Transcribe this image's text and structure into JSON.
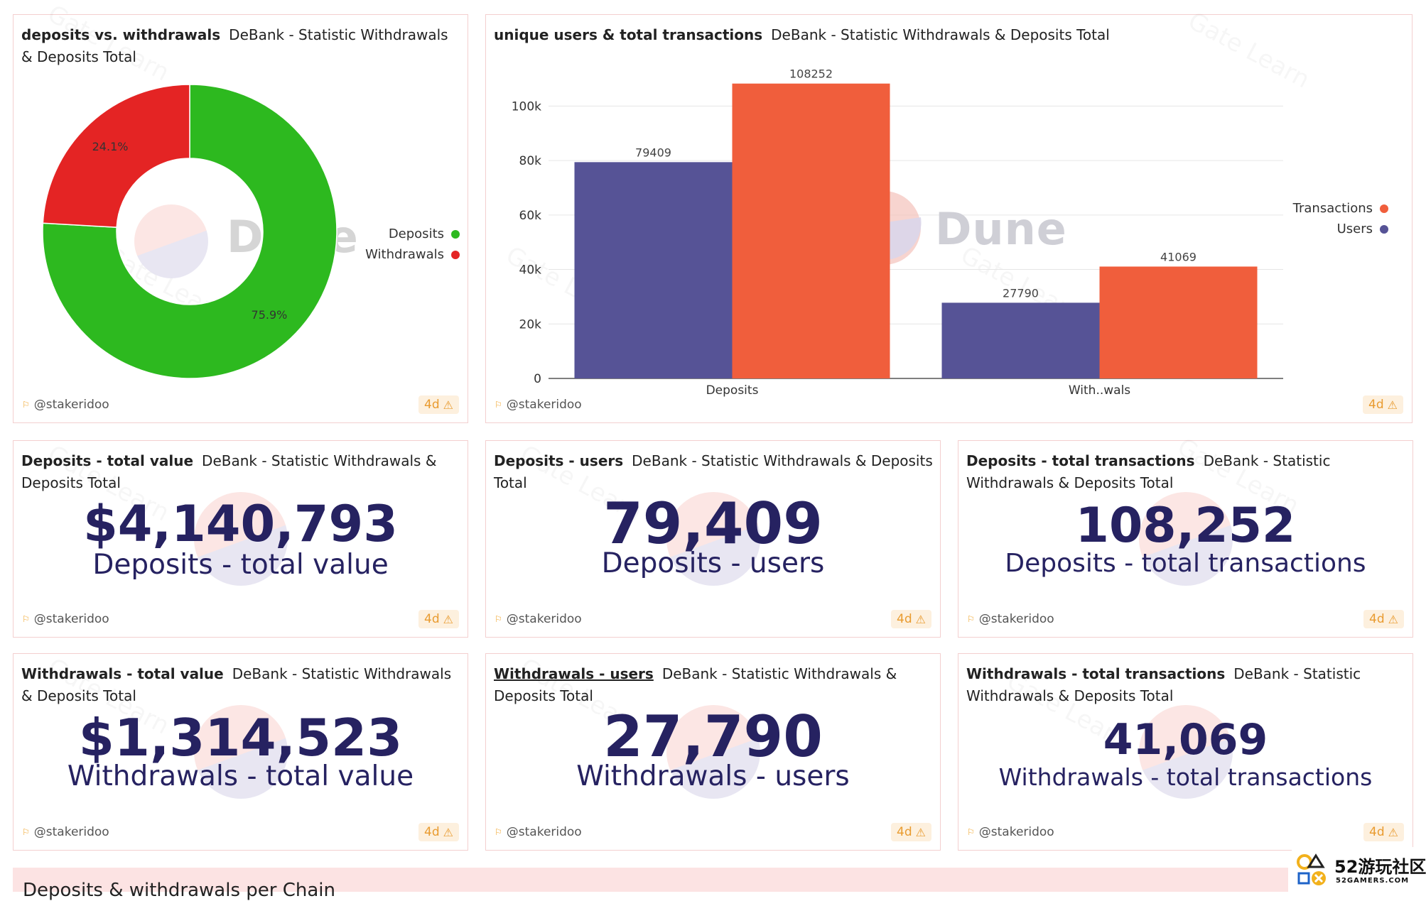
{
  "dashboard": {
    "footer": {
      "author": "@stakeridoo",
      "age": "4d"
    },
    "dune_watermark": "Dune",
    "gate_watermark": "Gate Learn",
    "pie_card": {
      "title": "deposits vs. withdrawals",
      "subtitle": "DeBank - Statistic Withdrawals & Deposits Total"
    },
    "bar_card": {
      "title": "unique users & total transactions",
      "subtitle": "DeBank - Statistic Withdrawals & Deposits Total"
    },
    "counters": [
      {
        "title": "Deposits - total value",
        "subtitle": "DeBank - Statistic Withdrawals & Deposits Total",
        "value": "$4,140,793",
        "label": "Deposits - total value"
      },
      {
        "title": "Deposits - users",
        "subtitle": "DeBank - Statistic Withdrawals & Deposits Total",
        "value": "79,409",
        "label": "Deposits - users"
      },
      {
        "title": "Deposits - total transactions",
        "subtitle": "DeBank - Statistic Withdrawals & Deposits Total",
        "value": "108,252",
        "label": "Deposits - total transactions"
      },
      {
        "title": "Withdrawals - total value",
        "subtitle": "DeBank - Statistic Withdrawals & Deposits Total",
        "value": "$1,314,523",
        "label": "Withdrawals - total value"
      },
      {
        "title": "Withdrawals - users",
        "subtitle": "DeBank - Statistic Withdrawals & Deposits Total",
        "value": "27,790",
        "label": "Withdrawals - users"
      },
      {
        "title": "Withdrawals - total transactions",
        "subtitle": "DeBank - Statistic Withdrawals & Deposits Total",
        "value": "41,069",
        "label": "Withdrawals - total transactions"
      }
    ],
    "next_section_title": "Deposits & withdrawals per Chain"
  },
  "site_logo": {
    "brand": "52游玩社区",
    "sub": "52GAMERS.COM"
  },
  "colors": {
    "deposits_green": "#2db91f",
    "withdrawals_red": "#e42424",
    "users_purple": "#565396",
    "transactions_orange": "#f05e3c",
    "counter_text": "#262261",
    "badge_orange": "#e99b2f"
  },
  "chart_data": [
    {
      "type": "pie",
      "categories": [
        "Deposits",
        "Withdrawals"
      ],
      "values": [
        75.9,
        24.1
      ],
      "data_labels": [
        "75.9%",
        "24.1%"
      ],
      "donut": true,
      "legend": "right",
      "colors": [
        "#2db91f",
        "#e42424"
      ]
    },
    {
      "type": "bar",
      "categories": [
        "Deposits",
        "With..wals"
      ],
      "series": [
        {
          "name": "Users",
          "values": [
            79409,
            27790
          ],
          "color": "#565396"
        },
        {
          "name": "Transactions",
          "values": [
            108252,
            41069
          ],
          "color": "#f05e3c"
        }
      ],
      "yticks": [
        "0",
        "20k",
        "40k",
        "60k",
        "80k",
        "100k"
      ],
      "ylim": [
        0,
        110000
      ],
      "grid": true,
      "legend": "right"
    }
  ]
}
